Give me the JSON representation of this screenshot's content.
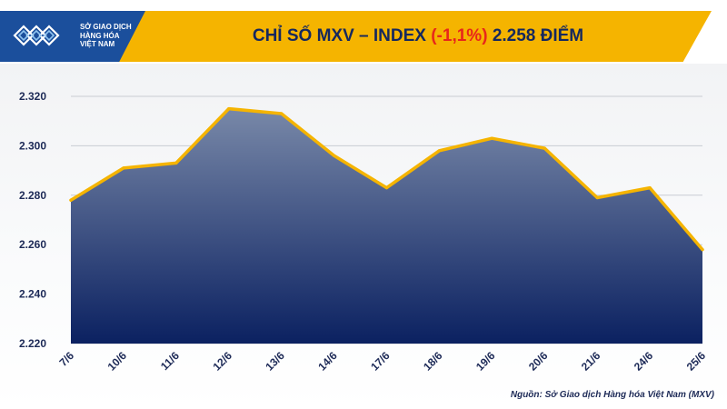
{
  "header": {
    "logo_lines": [
      "SỞ GIAO DỊCH",
      "HÀNG HÓA",
      "VIỆT NAM"
    ],
    "title_prefix": "CHỈ SỐ MXV – INDEX",
    "title_change": "(-1,1%)",
    "title_suffix": "2.258 ĐIỂM"
  },
  "colors": {
    "header_bg": "#f5b400",
    "logo_bg": "#1b4f9c",
    "line": "#f5b400",
    "area_top": "#7888a8",
    "area_bottom": "#0b2161",
    "title_text": "#15285e",
    "negative": "#e8261b"
  },
  "chart_data": {
    "type": "area",
    "title": "CHỈ SỐ MXV – INDEX (-1,1%) 2.258 ĐIỂM",
    "categories": [
      "7/6",
      "10/6",
      "11/6",
      "12/6",
      "13/6",
      "14/6",
      "17/6",
      "18/6",
      "19/6",
      "20/6",
      "21/6",
      "24/6",
      "25/6"
    ],
    "values": [
      2278,
      2291,
      2293,
      2315,
      2313,
      2296,
      2283,
      2298,
      2303,
      2299,
      2279,
      2283,
      2258
    ],
    "y_ticks": [
      "2.220",
      "2.240",
      "2.260",
      "2.280",
      "2.300",
      "2.320"
    ],
    "ylim": [
      2220,
      2320
    ],
    "grid": true,
    "xlabel": "",
    "ylabel": ""
  },
  "source": "Nguồn: Sở Giao dịch Hàng hóa Việt Nam (MXV)"
}
